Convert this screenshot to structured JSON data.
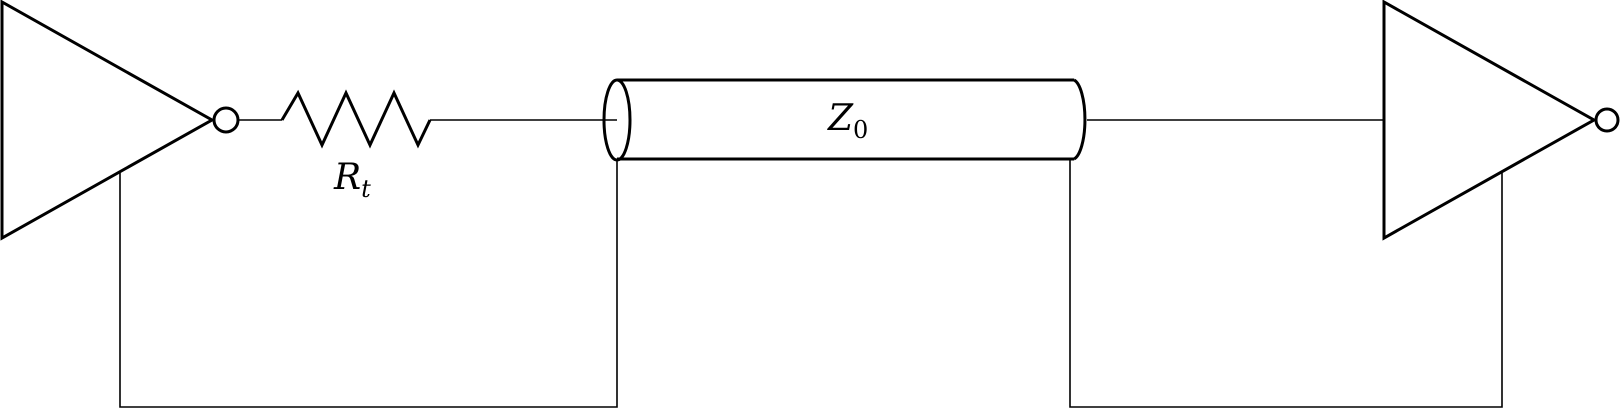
{
  "components": {
    "resistor": {
      "symbol": "R",
      "subscript": "t"
    },
    "transmission_line": {
      "symbol": "Z",
      "subscript": "0"
    }
  }
}
